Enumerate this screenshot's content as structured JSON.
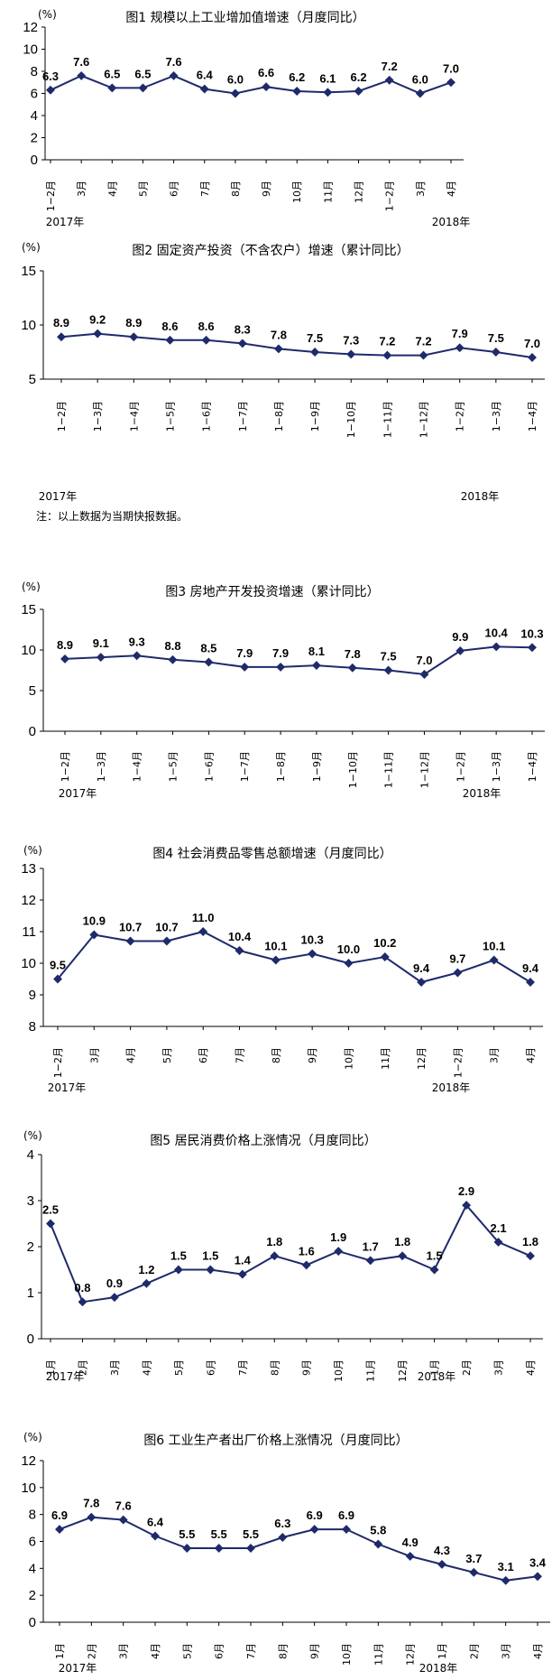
{
  "chart_data": [
    {
      "type": "line",
      "title": "图1   规模以上工业增加值增速（月度同比）",
      "unit": "(%)",
      "categories": [
        "1−2月",
        "3月",
        "4月",
        "5月",
        "6月",
        "7月",
        "8月",
        "9月",
        "10月",
        "11月",
        "12月",
        "1−2月",
        "3月",
        "4月"
      ],
      "values": [
        6.3,
        7.6,
        6.5,
        6.5,
        7.6,
        6.4,
        6.0,
        6.6,
        6.2,
        6.1,
        6.2,
        7.2,
        6.0,
        7.0
      ],
      "value_labels": [
        "6.3",
        "7.6",
        "6.5",
        "6.5",
        "7.6",
        "6.4",
        "6.0",
        "6.6",
        "6.2",
        "6.1",
        "6.2",
        "7.2",
        "6.0",
        "7.0"
      ],
      "ylim": [
        0,
        12
      ],
      "yticks": [
        0,
        2,
        4,
        6,
        8,
        10,
        12
      ],
      "ytick_labels": [
        "0",
        "2",
        "4",
        "6",
        "8",
        "10",
        "12"
      ],
      "years": [
        {
          "label": "2017年",
          "at": 0
        },
        {
          "label": "2018年",
          "at": 11
        }
      ],
      "note": ""
    },
    {
      "type": "line",
      "title": "图2   固定资产投资（不含农户）增速（累计同比）",
      "unit": "(%)",
      "categories": [
        "1−2月",
        "1−3月",
        "1−4月",
        "1−5月",
        "1−6月",
        "1−7月",
        "1−8月",
        "1−9月",
        "1−10月",
        "1−11月",
        "1−12月",
        "1−2月",
        "1−3月",
        "1−4月"
      ],
      "values": [
        8.9,
        9.2,
        8.9,
        8.6,
        8.6,
        8.3,
        7.8,
        7.5,
        7.3,
        7.2,
        7.2,
        7.9,
        7.5,
        7.0
      ],
      "value_labels": [
        "8.9",
        "9.2",
        "8.9",
        "8.6",
        "8.6",
        "8.3",
        "7.8",
        "7.5",
        "7.3",
        "7.2",
        "7.2",
        "7.9",
        "7.5",
        "7.0"
      ],
      "ylim": [
        5,
        15
      ],
      "yticks": [
        5,
        10,
        15
      ],
      "ytick_labels": [
        "5",
        "10",
        "15"
      ],
      "years": [
        {
          "label": "2017年",
          "at": 0
        },
        {
          "label": "2018年",
          "at": 11
        }
      ],
      "note": "注：以上数据为当期快报数据。"
    },
    {
      "type": "line",
      "title": "图3   房地产开发投资增速（累计同比）",
      "unit": "(%)",
      "categories": [
        "1−2月",
        "1−3月",
        "1−4月",
        "1−5月",
        "1−6月",
        "1−7月",
        "1−8月",
        "1−9月",
        "1−10月",
        "1−11月",
        "1−12月",
        "1−2月",
        "1−3月",
        "1−4月"
      ],
      "values": [
        8.9,
        9.1,
        9.3,
        8.8,
        8.5,
        7.9,
        7.9,
        8.1,
        7.8,
        7.5,
        7.0,
        9.9,
        10.4,
        10.3
      ],
      "value_labels": [
        "8.9",
        "9.1",
        "9.3",
        "8.8",
        "8.5",
        "7.9",
        "7.9",
        "8.1",
        "7.8",
        "7.5",
        "7.0",
        "9.9",
        "10.4",
        "10.3"
      ],
      "ylim": [
        0,
        15
      ],
      "yticks": [
        0,
        5,
        10,
        15
      ],
      "ytick_labels": [
        "0",
        "5",
        "10",
        "15"
      ],
      "years": [
        {
          "label": "2017年",
          "at": 0
        },
        {
          "label": "2018年",
          "at": 11
        }
      ],
      "note": ""
    },
    {
      "type": "line",
      "title": "图4   社会消费品零售总额增速（月度同比）",
      "unit": "(%)",
      "categories": [
        "1−2月",
        "3月",
        "4月",
        "5月",
        "6月",
        "7月",
        "8月",
        "9月",
        "10月",
        "11月",
        "12月",
        "1−2月",
        "3月",
        "4月"
      ],
      "values": [
        9.5,
        10.9,
        10.7,
        10.7,
        11.0,
        10.4,
        10.1,
        10.3,
        10.0,
        10.2,
        9.4,
        9.7,
        10.1,
        9.4
      ],
      "value_labels": [
        "9.5",
        "10.9",
        "10.7",
        "10.7",
        "11.0",
        "10.4",
        "10.1",
        "10.3",
        "10.0",
        "10.2",
        "9.4",
        "9.7",
        "10.1",
        "9.4"
      ],
      "ylim": [
        8,
        13
      ],
      "yticks": [
        8,
        9,
        10,
        11,
        12,
        13
      ],
      "ytick_labels": [
        "8",
        "9",
        "10",
        "11",
        "12",
        "13"
      ],
      "years": [
        {
          "label": "2017年",
          "at": 0
        },
        {
          "label": "2018年",
          "at": 11
        }
      ],
      "note": ""
    },
    {
      "type": "line",
      "title": "图5   居民消费价格上涨情况（月度同比）",
      "unit": "(%)",
      "categories": [
        "1月",
        "2月",
        "3月",
        "4月",
        "5月",
        "6月",
        "7月",
        "8月",
        "9月",
        "10月",
        "11月",
        "12月",
        "1月",
        "2月",
        "3月",
        "4月"
      ],
      "values": [
        2.5,
        0.8,
        0.9,
        1.2,
        1.5,
        1.5,
        1.4,
        1.8,
        1.6,
        1.9,
        1.7,
        1.8,
        1.5,
        2.9,
        2.1,
        1.8
      ],
      "value_labels": [
        "2.5",
        "0.8",
        "0.9",
        "1.2",
        "1.5",
        "1.5",
        "1.4",
        "1.8",
        "1.6",
        "1.9",
        "1.7",
        "1.8",
        "1.5",
        "2.9",
        "2.1",
        "1.8"
      ],
      "ylim": [
        0,
        4
      ],
      "yticks": [
        0,
        1,
        2,
        3,
        4
      ],
      "ytick_labels": [
        "0",
        "1",
        "2",
        "3",
        "4"
      ],
      "years": [
        {
          "label": "2017年",
          "at": 0
        },
        {
          "label": "2018年",
          "at": 12
        }
      ],
      "note": ""
    },
    {
      "type": "line",
      "title": "图6  工业生产者出厂价格上涨情况（月度同比）",
      "unit": "(%)",
      "categories": [
        "1月",
        "2月",
        "3月",
        "4月",
        "5月",
        "6月",
        "7月",
        "8月",
        "9月",
        "10月",
        "11月",
        "12月",
        "1月",
        "2月",
        "3月",
        "4月"
      ],
      "values": [
        6.9,
        7.8,
        7.6,
        6.4,
        5.5,
        5.5,
        5.5,
        6.3,
        6.9,
        6.9,
        5.8,
        4.9,
        4.3,
        3.7,
        3.1,
        3.4
      ],
      "value_labels": [
        "6.9",
        "7.8",
        "7.6",
        "6.4",
        "5.5",
        "5.5",
        "5.5",
        "6.3",
        "6.9",
        "6.9",
        "5.8",
        "4.9",
        "4.3",
        "3.7",
        "3.1",
        "3.4"
      ],
      "ylim": [
        0,
        12
      ],
      "yticks": [
        0,
        2,
        4,
        6,
        8,
        10,
        12
      ],
      "ytick_labels": [
        "0",
        "2",
        "4",
        "6",
        "8",
        "10",
        "12"
      ],
      "years": [
        {
          "label": "2017年",
          "at": 0
        },
        {
          "label": "2018年",
          "at": 12
        }
      ],
      "note": ""
    }
  ],
  "colors": {
    "series": "#1f2a6b",
    "axis": "#000000"
  }
}
